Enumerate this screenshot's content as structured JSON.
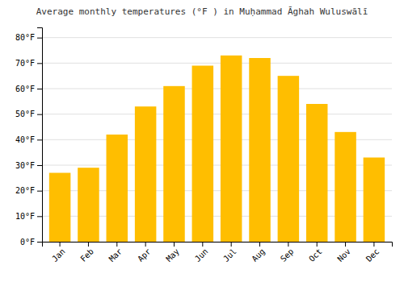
{
  "chart_data": {
    "type": "bar",
    "title": "Average monthly temperatures (°F ) in Muḥammad Āghah Wuluswālī",
    "categories": [
      "Jan",
      "Feb",
      "Mar",
      "Apr",
      "May",
      "Jun",
      "Jul",
      "Aug",
      "Sep",
      "Oct",
      "Nov",
      "Dec"
    ],
    "values": [
      27,
      29,
      42,
      53,
      61,
      69,
      73,
      72,
      65,
      54,
      43,
      33
    ],
    "color": "#FFBE00",
    "ylim": [
      0,
      84
    ],
    "yticks": [
      {
        "value": 0,
        "label": "0°F"
      },
      {
        "value": 10,
        "label": "10°F"
      },
      {
        "value": 20,
        "label": "20°F"
      },
      {
        "value": 30,
        "label": "30°F"
      },
      {
        "value": 40,
        "label": "40°F"
      },
      {
        "value": 50,
        "label": "50°F"
      },
      {
        "value": 60,
        "label": "60°F"
      },
      {
        "value": 70,
        "label": "70°F"
      },
      {
        "value": 80,
        "label": "80°F"
      }
    ],
    "grid": true
  }
}
